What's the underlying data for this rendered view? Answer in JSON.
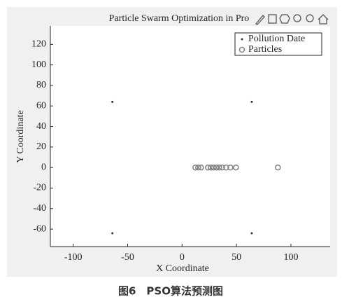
{
  "chart_data": {
    "type": "scatter",
    "title": "Particle Swarm Optimization in Pro",
    "x_label": "X Coordinate",
    "y_label": "Y Coordinate",
    "xlim": [
      -121,
      136
    ],
    "ylim": [
      -77,
      138
    ],
    "xticks": [
      -100,
      -50,
      0,
      50,
      100
    ],
    "yticks": [
      -60,
      -40,
      -20,
      0,
      20,
      40,
      60,
      80,
      100,
      120
    ],
    "grid": false,
    "legend": "upper right",
    "series": [
      {
        "name": "Pollution Date",
        "color": "#333333",
        "marker": "dot",
        "x": [
          -64,
          64,
          -64,
          64
        ],
        "values": [
          64,
          64,
          -64,
          -64
        ]
      },
      {
        "name": "Particles",
        "color": "#808080",
        "marker": "circle",
        "x": [
          12.2,
          14.8,
          17.4,
          23.8,
          26.4,
          28.9,
          31.5,
          34.1,
          36.7,
          40.5,
          44.4,
          49.5,
          88
        ],
        "values": [
          0,
          0,
          0,
          0,
          0,
          0,
          0,
          0,
          0,
          0,
          0,
          0,
          0
        ]
      }
    ]
  },
  "caption": "图6　PSO算法预测图"
}
